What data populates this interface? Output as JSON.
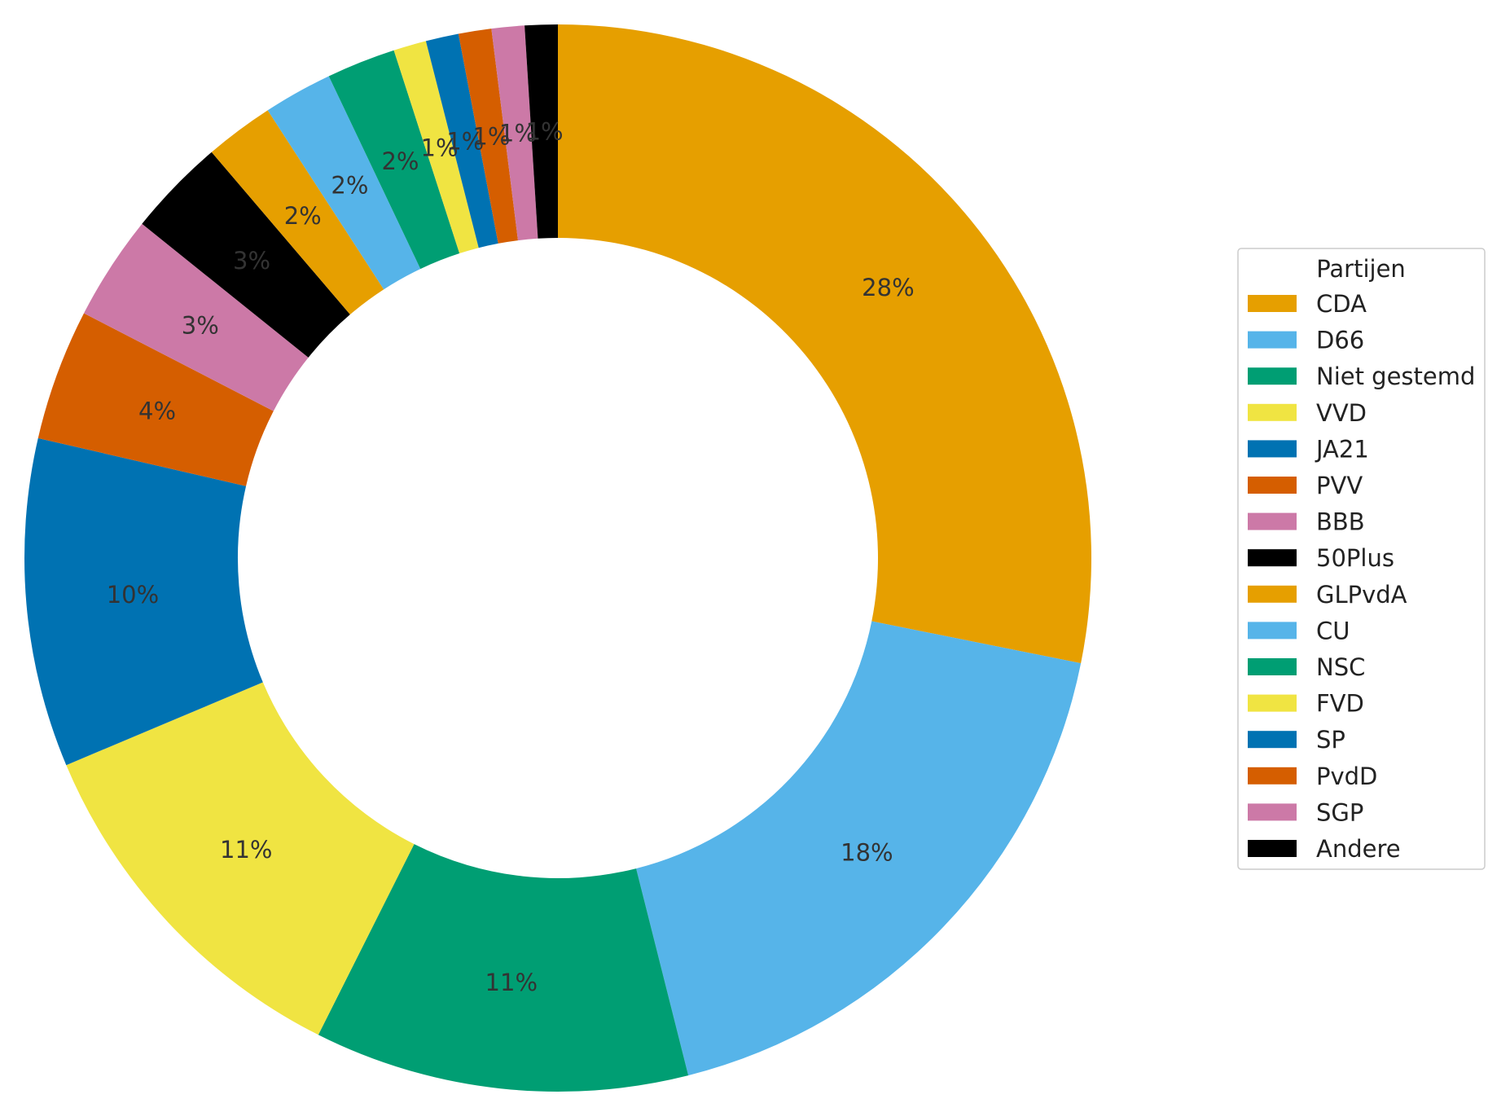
{
  "chart_data": {
    "type": "pie",
    "variant": "donut",
    "title": "",
    "legend": {
      "title": "Partijen",
      "placement": "right"
    },
    "start_angle_deg": 90,
    "direction": "clockwise",
    "slices": [
      {
        "label": "CDA",
        "value": 28.3,
        "display": "28%",
        "color": "#E69F00"
      },
      {
        "label": "D66",
        "value": 18.0,
        "display": "18%",
        "color": "#56B4E9"
      },
      {
        "label": "Niet gestemd",
        "value": 11.4,
        "display": "11%",
        "color": "#009E73"
      },
      {
        "label": "VVD",
        "value": 11.3,
        "display": "11%",
        "color": "#F0E442"
      },
      {
        "label": "JA21",
        "value": 10.0,
        "display": "10%",
        "color": "#0072B2"
      },
      {
        "label": "PVV",
        "value": 4.0,
        "display": "4%",
        "color": "#D55E00"
      },
      {
        "label": "BBB",
        "value": 3.2,
        "display": "3%",
        "color": "#CC79A7"
      },
      {
        "label": "50Plus",
        "value": 3.0,
        "display": "3%",
        "color": "#000000"
      },
      {
        "label": "GLPvdA",
        "value": 2.1,
        "display": "2%",
        "color": "#E69F00"
      },
      {
        "label": "CU",
        "value": 2.1,
        "display": "2%",
        "color": "#56B4E9"
      },
      {
        "label": "NSC",
        "value": 2.1,
        "display": "2%",
        "color": "#009E73"
      },
      {
        "label": "FVD",
        "value": 1.0,
        "display": "1%",
        "color": "#F0E442"
      },
      {
        "label": "SP",
        "value": 1.0,
        "display": "1%",
        "color": "#0072B2"
      },
      {
        "label": "PvdD",
        "value": 1.0,
        "display": "1%",
        "color": "#D55E00"
      },
      {
        "label": "SGP",
        "value": 1.0,
        "display": "1%",
        "color": "#CC79A7"
      },
      {
        "label": "Andere",
        "value": 1.0,
        "display": "1%",
        "color": "#000000"
      }
    ]
  }
}
